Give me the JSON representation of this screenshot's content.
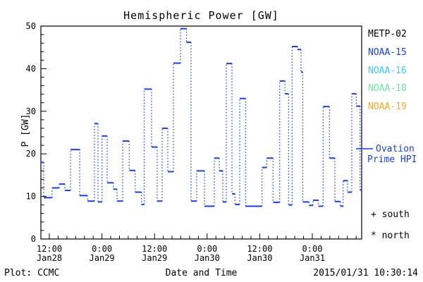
{
  "title": "Hemispheric Power [GW]",
  "footer": {
    "left": "Plot: CCMC",
    "timestamp": "2015/01/31 10:30:14"
  },
  "legend": {
    "satellites": [
      {
        "label": "METP-02",
        "color": "#000000"
      },
      {
        "label": "NOAA-15",
        "color": "#1c40e0"
      },
      {
        "label": "NOAA-16",
        "color": "#3fc8f5"
      },
      {
        "label": "NOAA-18",
        "color": "#70e89e"
      },
      {
        "label": "NOAA-19",
        "color": "#ffa826"
      }
    ],
    "ovation": {
      "line1": "Ovation",
      "line2": "Prime HPI",
      "color": "#1c40e0"
    },
    "hemisphere_markers": {
      "south": "+ south",
      "north": "* north"
    }
  },
  "chart_data": {
    "type": "line",
    "subtype": "steps",
    "title": "Hemispheric Power [GW]",
    "xlabel": "Date and Time",
    "ylabel": "P [GW]",
    "grid": false,
    "legend_position": "right",
    "x_unit": "hours since 2015-01-28 00:00 UT",
    "xlim": [
      10.07,
      83.26
    ],
    "ylim": [
      0,
      50
    ],
    "y_tick_labels": [
      0,
      10,
      20,
      30,
      40,
      50
    ],
    "y_major_tick_step": 10,
    "y_minor_tick_step": 2,
    "x_minor_tick_step_hours": 2,
    "x_major_ticks": [
      {
        "hours": 12,
        "time": "12:00",
        "date": "Jan28"
      },
      {
        "hours": 24,
        "time": "0:00",
        "date": "Jan29"
      },
      {
        "hours": 36,
        "time": "12:00",
        "date": "Jan29"
      },
      {
        "hours": 48,
        "time": "0:00",
        "date": "Jan30"
      },
      {
        "hours": 60,
        "time": "12:00",
        "date": "Jan30"
      },
      {
        "hours": 72,
        "time": "0:00",
        "date": "Jan31"
      }
    ],
    "series": [
      {
        "name": "NOAA-15 Hemispheric Power Index",
        "color": "#1c40e0",
        "t_end_hours": 83.26,
        "steps_t_hours_P_GW": [
          [
            10.07,
            18.0
          ],
          [
            10.71,
            9.7
          ],
          [
            12.64,
            12.0
          ],
          [
            14.25,
            12.9
          ],
          [
            15.54,
            11.4
          ],
          [
            16.83,
            21.0
          ],
          [
            18.92,
            10.2
          ],
          [
            20.69,
            8.9
          ],
          [
            22.29,
            27.1
          ],
          [
            23.1,
            8.7
          ],
          [
            24.01,
            24.2
          ],
          [
            25.19,
            13.2
          ],
          [
            26.59,
            11.7
          ],
          [
            27.44,
            8.9
          ],
          [
            28.73,
            23.0
          ],
          [
            30.23,
            16.1
          ],
          [
            31.58,
            11.0
          ],
          [
            33.02,
            8.1
          ],
          [
            33.64,
            35.2
          ],
          [
            35.32,
            21.6
          ],
          [
            36.61,
            8.9
          ],
          [
            37.74,
            26.0
          ],
          [
            39.02,
            15.8
          ],
          [
            40.31,
            41.3
          ],
          [
            41.92,
            49.4
          ],
          [
            43.28,
            46.2
          ],
          [
            44.33,
            8.9
          ],
          [
            45.62,
            16.0
          ],
          [
            47.39,
            7.7
          ],
          [
            49.64,
            19.0
          ],
          [
            50.77,
            16.0
          ],
          [
            51.57,
            8.7
          ],
          [
            52.38,
            41.2
          ],
          [
            53.66,
            10.6
          ],
          [
            54.35,
            8.1
          ],
          [
            55.43,
            33.0
          ],
          [
            56.77,
            7.7
          ],
          [
            60.53,
            16.8
          ],
          [
            61.59,
            19.0
          ],
          [
            63.04,
            8.6
          ],
          [
            64.55,
            37.1
          ],
          [
            65.77,
            34.1
          ],
          [
            66.58,
            8.0
          ],
          [
            67.38,
            45.2
          ],
          [
            68.62,
            44.5
          ],
          [
            69.42,
            39.2
          ],
          [
            69.82,
            8.7
          ],
          [
            71.24,
            7.9
          ],
          [
            72.16,
            9.1
          ],
          [
            73.4,
            7.7
          ],
          [
            74.46,
            31.1
          ],
          [
            75.91,
            19.0
          ],
          [
            77.15,
            8.8
          ],
          [
            78.39,
            7.7
          ],
          [
            79.03,
            13.7
          ],
          [
            80.04,
            11.0
          ],
          [
            81.01,
            34.1
          ],
          [
            82.02,
            31.2
          ],
          [
            82.89,
            11.5
          ]
        ]
      }
    ]
  }
}
